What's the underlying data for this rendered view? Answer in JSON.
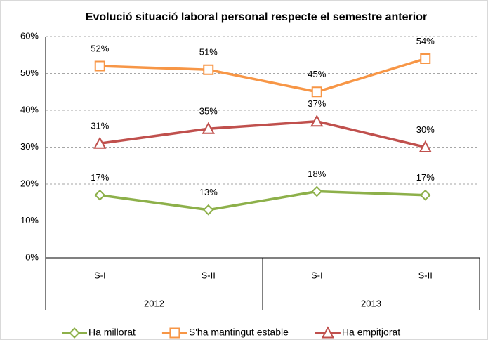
{
  "chart_data": {
    "type": "line",
    "title": "Evolució situació laboral personal respecte el semestre anterior",
    "categories": [
      "S-I",
      "S-II",
      "S-I",
      "S-II"
    ],
    "category_groups": [
      "2012",
      "2013"
    ],
    "ylim": [
      0,
      60
    ],
    "yticks": [
      {
        "value": 0,
        "label": "0%"
      },
      {
        "value": 10,
        "label": "10%"
      },
      {
        "value": 20,
        "label": "20%"
      },
      {
        "value": 30,
        "label": "30%"
      },
      {
        "value": 40,
        "label": "40%"
      },
      {
        "value": 50,
        "label": "50%"
      },
      {
        "value": 60,
        "label": "60%"
      }
    ],
    "grid": true,
    "legend": "bottom",
    "series": [
      {
        "name": "Ha millorat",
        "color": "#8db04a",
        "marker": "diamond",
        "values": [
          17,
          13,
          18,
          17
        ],
        "value_labels": [
          "17%",
          "13%",
          "18%",
          "17%"
        ]
      },
      {
        "name": "S'ha mantingut estable",
        "color": "#f79646",
        "marker": "square",
        "values": [
          52,
          51,
          45,
          54
        ],
        "value_labels": [
          "52%",
          "51%",
          "45%",
          "54%"
        ]
      },
      {
        "name": "Ha empitjorat",
        "color": "#c0504d",
        "marker": "triangle",
        "values": [
          31,
          35,
          37,
          30
        ],
        "value_labels": [
          "31%",
          "35%",
          "37%",
          "30%"
        ]
      }
    ]
  }
}
